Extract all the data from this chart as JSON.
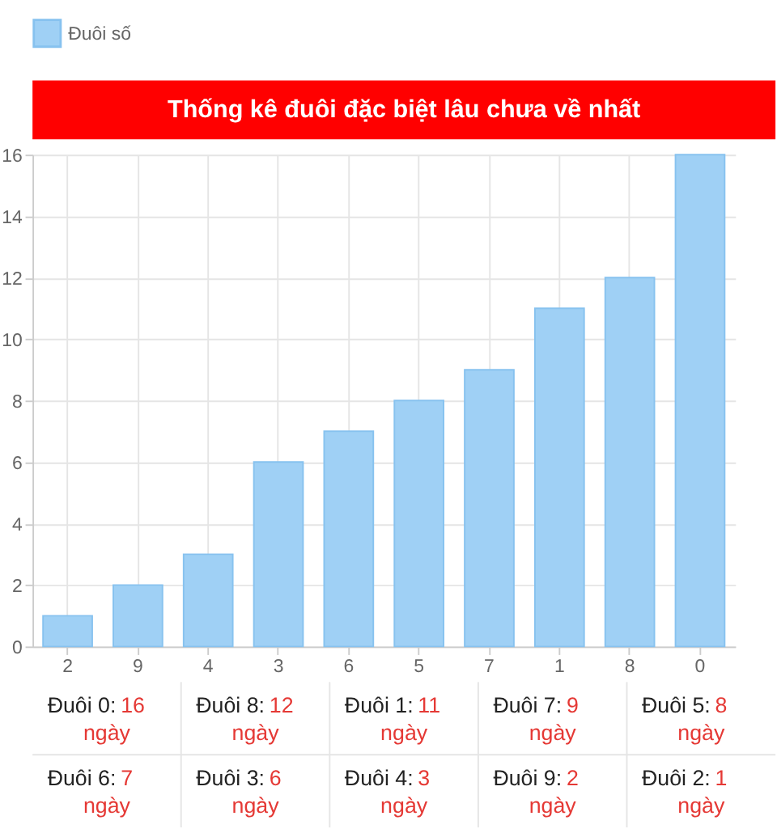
{
  "chart_data": {
    "type": "bar",
    "title": "Thống kê đuôi đặc biệt lâu chưa về nhất",
    "categories": [
      "2",
      "9",
      "4",
      "3",
      "6",
      "5",
      "7",
      "1",
      "8",
      "0"
    ],
    "series": [
      {
        "name": "Đuôi số",
        "color": "#9fd0f5",
        "values": [
          1,
          2,
          3,
          6,
          7,
          8,
          9,
          11,
          12,
          16
        ]
      }
    ],
    "ylim": [
      0,
      16
    ],
    "yticks": [
      0,
      2,
      4,
      6,
      8,
      10,
      12,
      14,
      16
    ],
    "grid": true,
    "legend": "top",
    "annotations": [
      "Đuôi 0: 16 ngày",
      "Đuôi 8: 12 ngày",
      "Đuôi 1: 11 ngày",
      "Đuôi 7: 9 ngày",
      "Đuôi 5: 8 ngày",
      "Đuôi 6: 7 ngày",
      "Đuôi 3: 6 ngày",
      "Đuôi 4: 3 ngày",
      "Đuôi 9: 2 ngày",
      "Đuôi 2: 1 ngày"
    ]
  }
}
